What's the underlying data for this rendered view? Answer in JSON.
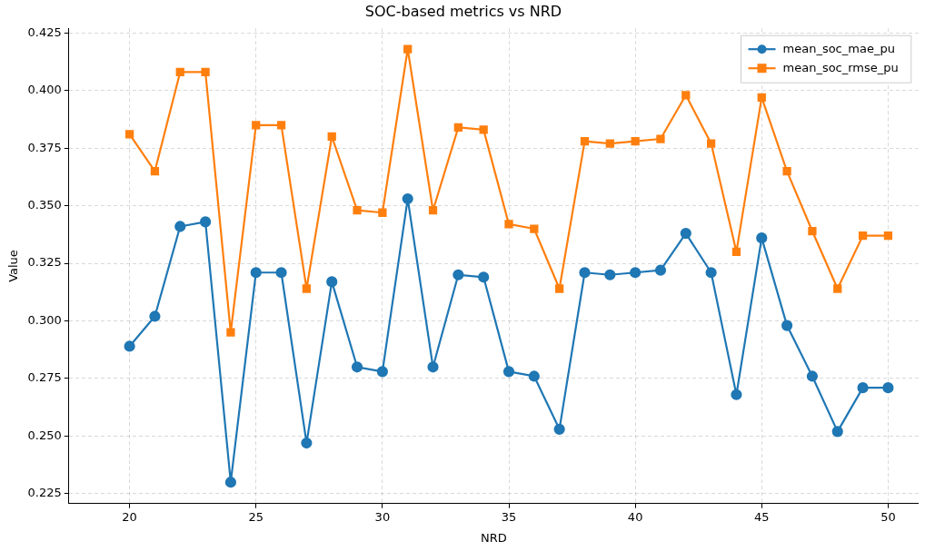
{
  "chart_data": {
    "type": "line",
    "title": "SOC-based metrics vs NRD",
    "xlabel": "NRD",
    "ylabel": "Value",
    "x": [
      20,
      21,
      22,
      23,
      24,
      25,
      26,
      27,
      28,
      29,
      30,
      31,
      32,
      33,
      34,
      35,
      36,
      37,
      38,
      39,
      40,
      41,
      42,
      43,
      44,
      45,
      46,
      47,
      48,
      49,
      50
    ],
    "series": [
      {
        "name": "mean_soc_mae_pu",
        "color": "#1f77b4",
        "marker": "circle",
        "values": [
          0.289,
          0.302,
          0.341,
          0.343,
          0.23,
          0.321,
          0.321,
          0.247,
          0.317,
          0.28,
          0.278,
          0.353,
          0.28,
          0.32,
          0.319,
          0.278,
          0.276,
          0.253,
          0.321,
          0.32,
          0.321,
          0.322,
          0.338,
          0.321,
          0.268,
          0.336,
          0.298,
          0.276,
          0.252,
          0.271,
          0.271
        ]
      },
      {
        "name": "mean_soc_rmse_pu",
        "color": "#ff7f0e",
        "marker": "square",
        "values": [
          0.381,
          0.365,
          0.408,
          0.408,
          0.295,
          0.385,
          0.385,
          0.314,
          0.38,
          0.348,
          0.347,
          0.418,
          0.348,
          0.384,
          0.383,
          0.342,
          0.34,
          0.314,
          0.378,
          0.377,
          0.378,
          0.379,
          0.398,
          0.377,
          0.33,
          0.397,
          0.365,
          0.339,
          0.314,
          0.337,
          0.337
        ]
      }
    ],
    "xlim": [
      17.6,
      51.2
    ],
    "xticks": [
      20,
      25,
      30,
      35,
      40,
      45,
      50
    ],
    "ylim": [
      0.2207,
      0.427
    ],
    "yticks": [
      {
        "value": 0.225,
        "label": "0.225"
      },
      {
        "value": 0.25,
        "label": "0.250"
      },
      {
        "value": 0.275,
        "label": "0.275"
      },
      {
        "value": 0.3,
        "label": "0.300"
      },
      {
        "value": 0.325,
        "label": "0.325"
      },
      {
        "value": 0.35,
        "label": "0.350"
      },
      {
        "value": 0.375,
        "label": "0.375"
      },
      {
        "value": 0.4,
        "label": "0.400"
      },
      {
        "value": 0.425,
        "label": "0.425"
      }
    ],
    "grid": true,
    "legend": "top right",
    "line_style": "solid"
  }
}
